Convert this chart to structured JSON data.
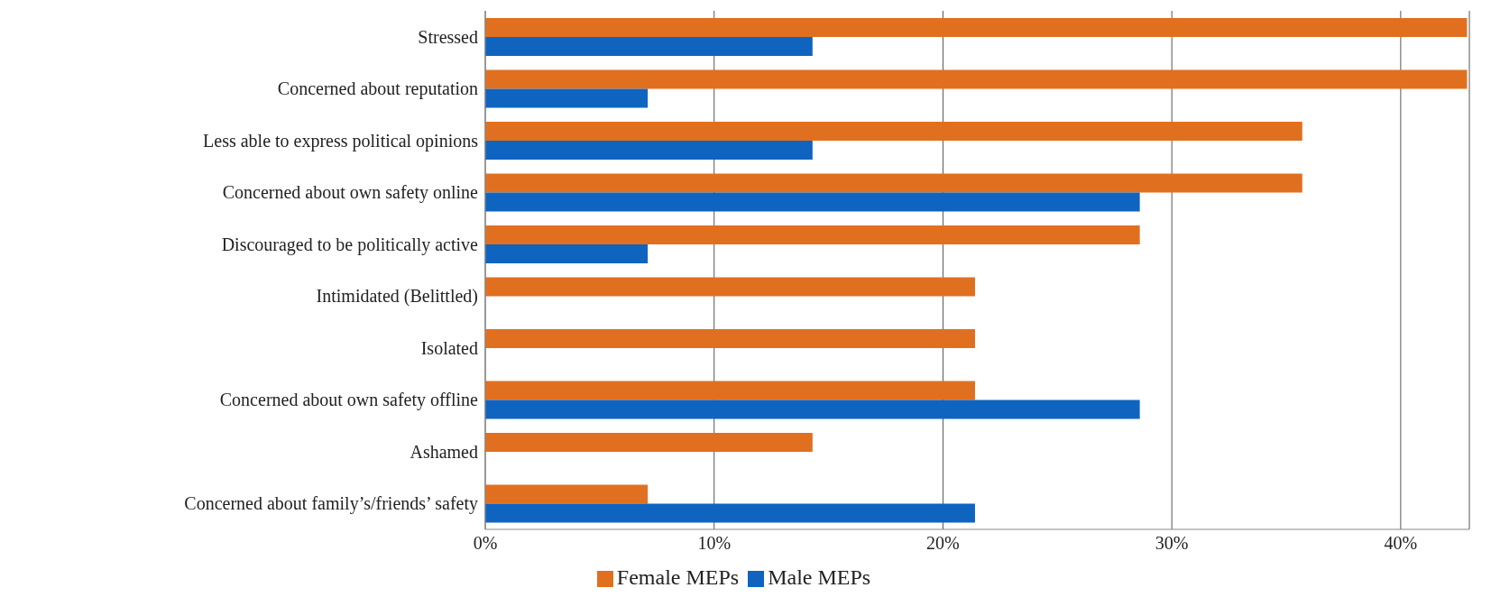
{
  "chart_data": {
    "type": "bar",
    "orientation": "horizontal",
    "categories": [
      "Stressed",
      "Concerned about reputation",
      "Less able to express political opinions",
      "Concerned about own safety online",
      "Discouraged to be politically active",
      "Intimidated (Belittled)",
      "Isolated",
      "Concerned about own safety offline",
      "Ashamed",
      "Concerned about family’s/friends’ safety"
    ],
    "series": [
      {
        "name": "Female MEPs",
        "color": "#e07020",
        "values": [
          42.9,
          42.9,
          35.7,
          35.7,
          28.6,
          21.4,
          21.4,
          21.4,
          14.3,
          7.1
        ]
      },
      {
        "name": "Male MEPs",
        "color": "#0f64c0",
        "values": [
          14.3,
          7.1,
          14.3,
          28.6,
          7.1,
          0,
          0,
          28.6,
          0,
          21.4
        ]
      }
    ],
    "xlim": [
      0,
      43
    ],
    "xticks": [
      {
        "value": 0,
        "label": "0%"
      },
      {
        "value": 10,
        "label": "10%"
      },
      {
        "value": 20,
        "label": "20%"
      },
      {
        "value": 30,
        "label": "30%"
      },
      {
        "value": 40,
        "label": "40%"
      }
    ],
    "grid": "x",
    "legend": "bottom"
  }
}
